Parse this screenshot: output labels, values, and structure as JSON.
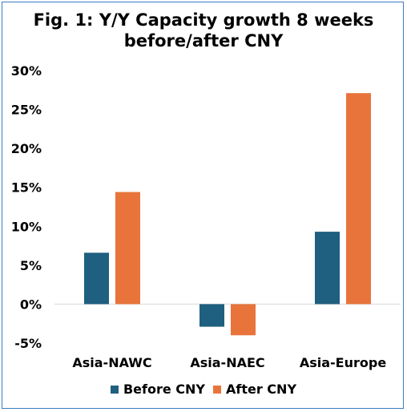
{
  "chart_data": {
    "type": "bar",
    "title_lines": [
      "Fig. 1: Y/Y Capacity growth 8 weeks",
      "before/after CNY"
    ],
    "categories": [
      "Asia-NAWC",
      "Asia-NAEC",
      "Asia-Europe"
    ],
    "series": [
      {
        "name": "Before CNY",
        "values": [
          6.6,
          -2.9,
          9.3
        ],
        "color": "#1f5f7f"
      },
      {
        "name": "After CNY",
        "values": [
          14.4,
          -4.0,
          27.1
        ],
        "color": "#e8743b"
      }
    ],
    "ylim": [
      -5,
      30
    ],
    "yticks": [
      -5,
      0,
      5,
      10,
      15,
      20,
      25,
      30
    ],
    "ytick_labels": [
      "-5%",
      "0%",
      "5%",
      "10%",
      "15%",
      "20%",
      "25%",
      "30%"
    ],
    "legend_position": "bottom",
    "grid": false
  }
}
